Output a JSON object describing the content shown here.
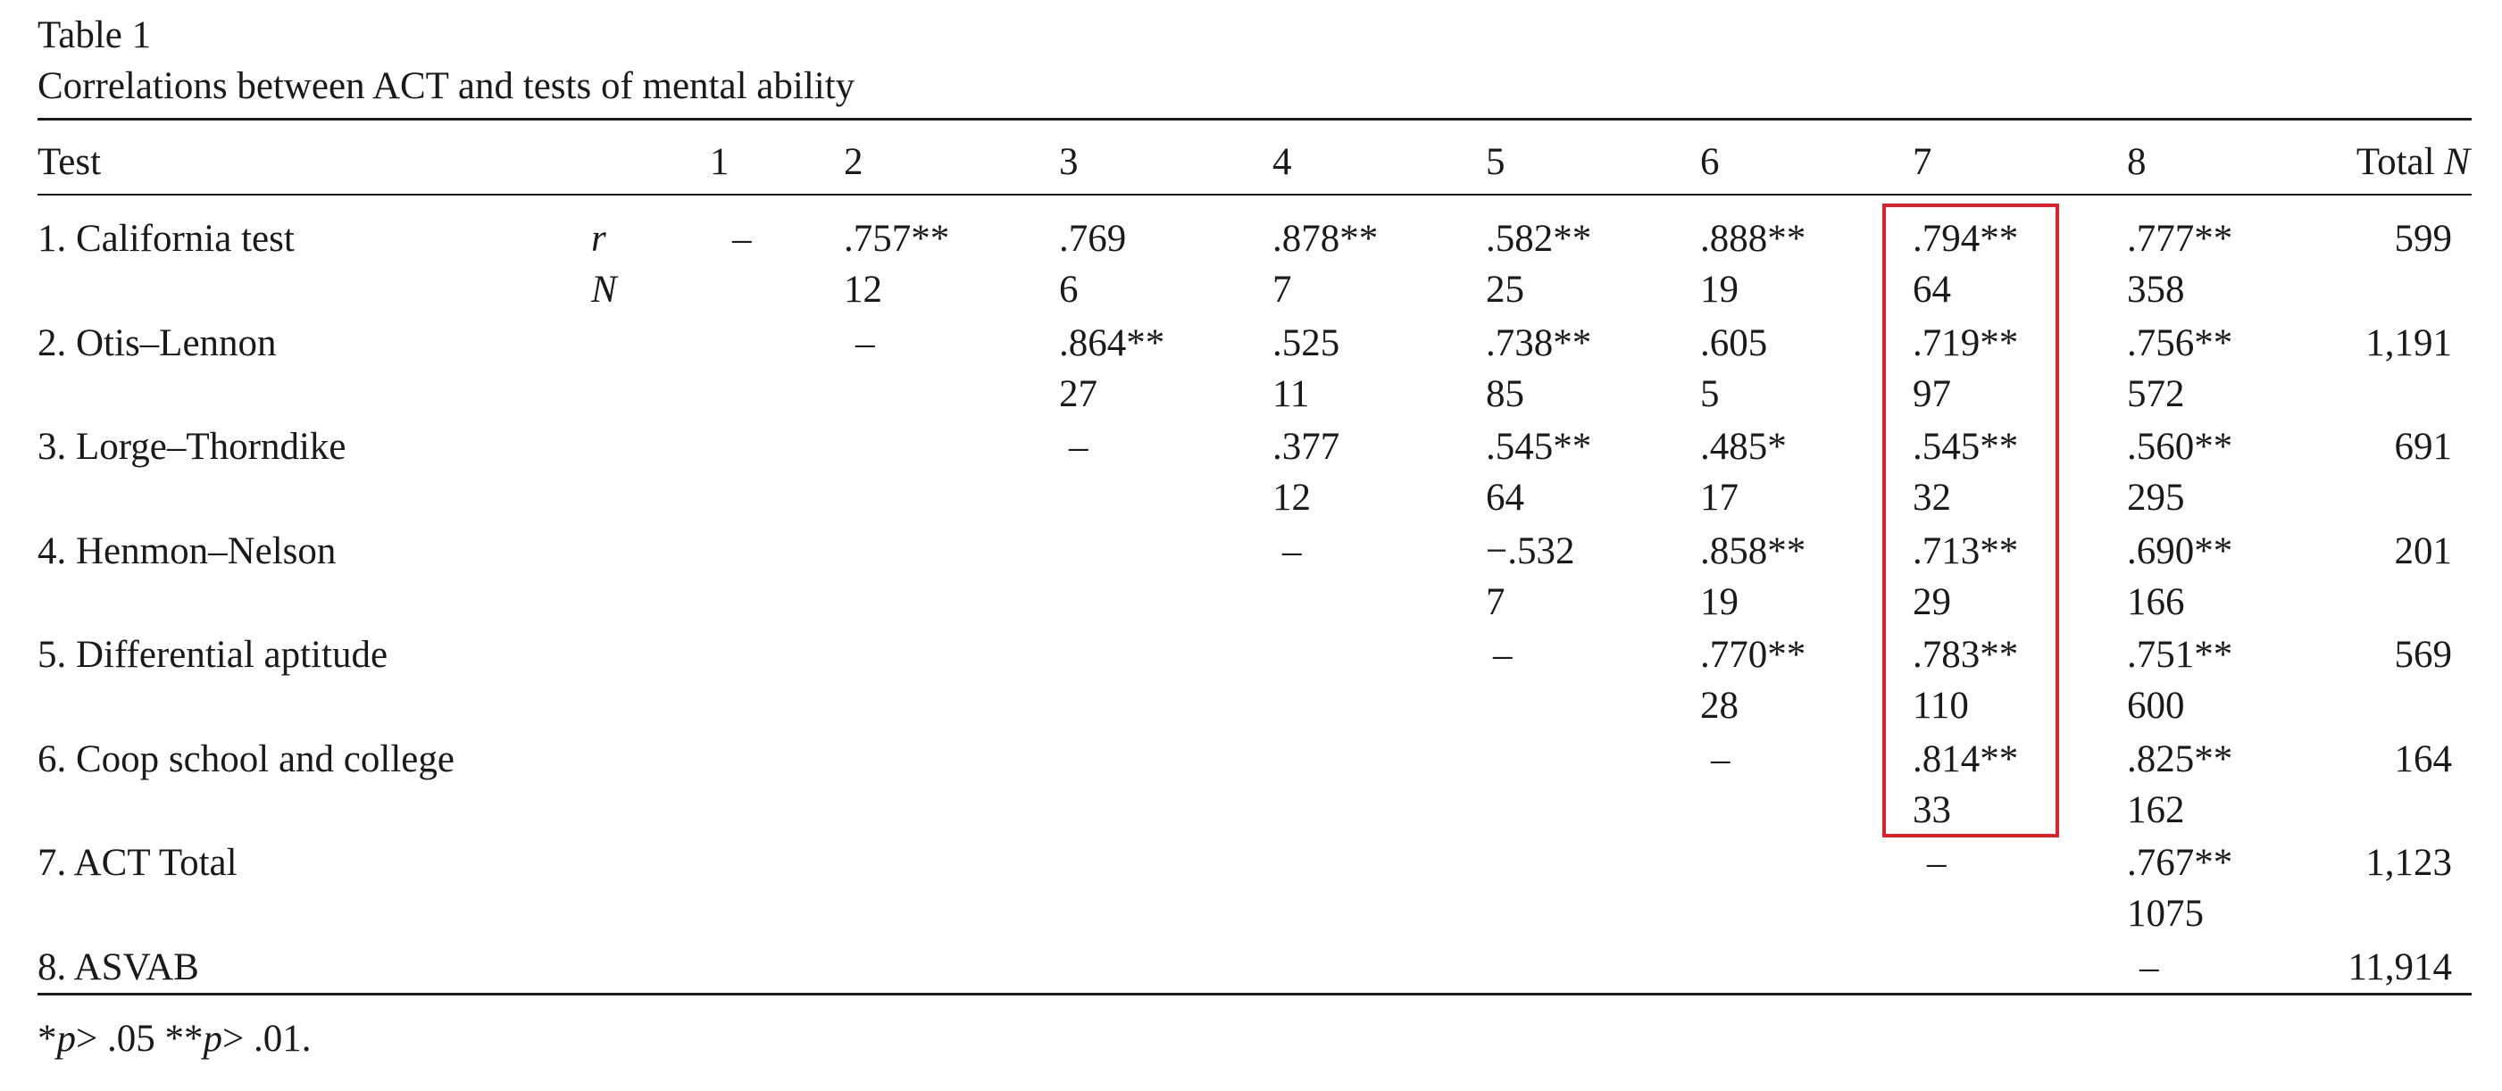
{
  "table": {
    "label": "Table 1",
    "title": "Correlations between ACT and tests of mental ability",
    "header": {
      "test": "Test",
      "cols": [
        "1",
        "2",
        "3",
        "4",
        "5",
        "6",
        "7",
        "8"
      ],
      "total_label": "Total ",
      "total_italic": "N"
    },
    "row_markers": {
      "r": "r",
      "n": "N"
    },
    "rows": [
      {
        "name": "1. California test",
        "diag_col": 1,
        "r": [
          "",
          ".757**",
          ".769",
          ".878**",
          ".582**",
          ".888**",
          ".794**",
          ".777**"
        ],
        "n": [
          "",
          "12",
          "6",
          "7",
          "25",
          "19",
          "64",
          "358"
        ],
        "total": "599"
      },
      {
        "name": "2. Otis–Lennon",
        "diag_col": 2,
        "r": [
          "",
          "",
          ".864**",
          ".525",
          ".738**",
          ".605",
          ".719**",
          ".756**"
        ],
        "n": [
          "",
          "",
          "27",
          "11",
          "85",
          "5",
          "97",
          "572"
        ],
        "total": "1,191"
      },
      {
        "name": "3. Lorge–Thorndike",
        "diag_col": 3,
        "r": [
          "",
          "",
          "",
          ".377",
          ".545**",
          ".485*",
          ".545**",
          ".560**"
        ],
        "n": [
          "",
          "",
          "",
          "12",
          "64",
          "17",
          "32",
          "295"
        ],
        "total": "691"
      },
      {
        "name": "4. Henmon–Nelson",
        "diag_col": 4,
        "r": [
          "",
          "",
          "",
          "",
          "−.532",
          ".858**",
          ".713**",
          ".690**"
        ],
        "n": [
          "",
          "",
          "",
          "",
          "7",
          "19",
          "29",
          "166"
        ],
        "total": "201"
      },
      {
        "name": "5. Differential aptitude",
        "diag_col": 5,
        "r": [
          "",
          "",
          "",
          "",
          "",
          ".770**",
          ".783**",
          ".751**"
        ],
        "n": [
          "",
          "",
          "",
          "",
          "",
          "28",
          "110",
          "600"
        ],
        "total": "569"
      },
      {
        "name": "6. Coop school and college",
        "diag_col": 6,
        "r": [
          "",
          "",
          "",
          "",
          "",
          "",
          ".814**",
          ".825**"
        ],
        "n": [
          "",
          "",
          "",
          "",
          "",
          "",
          "33",
          "162"
        ],
        "total": "164"
      },
      {
        "name": "7. ACT Total",
        "diag_col": 7,
        "r": [
          "",
          "",
          "",
          "",
          "",
          "",
          "",
          ".767**"
        ],
        "n": [
          "",
          "",
          "",
          "",
          "",
          "",
          "",
          "1075"
        ],
        "total": "1,123"
      },
      {
        "name": "8. ASVAB",
        "diag_col": 8,
        "r": [
          "",
          "",
          "",
          "",
          "",
          "",
          "",
          ""
        ],
        "n": [
          "",
          "",
          "",
          "",
          "",
          "",
          "",
          ""
        ],
        "total": "11,914"
      }
    ],
    "diag_symbol": "–",
    "footnote": {
      "star1": "*",
      "p1": "p",
      "rest1": "> .05 **",
      "p2": "p",
      "rest2": "> .01."
    },
    "highlight": {
      "column": "7",
      "color": "#e0202a"
    }
  }
}
